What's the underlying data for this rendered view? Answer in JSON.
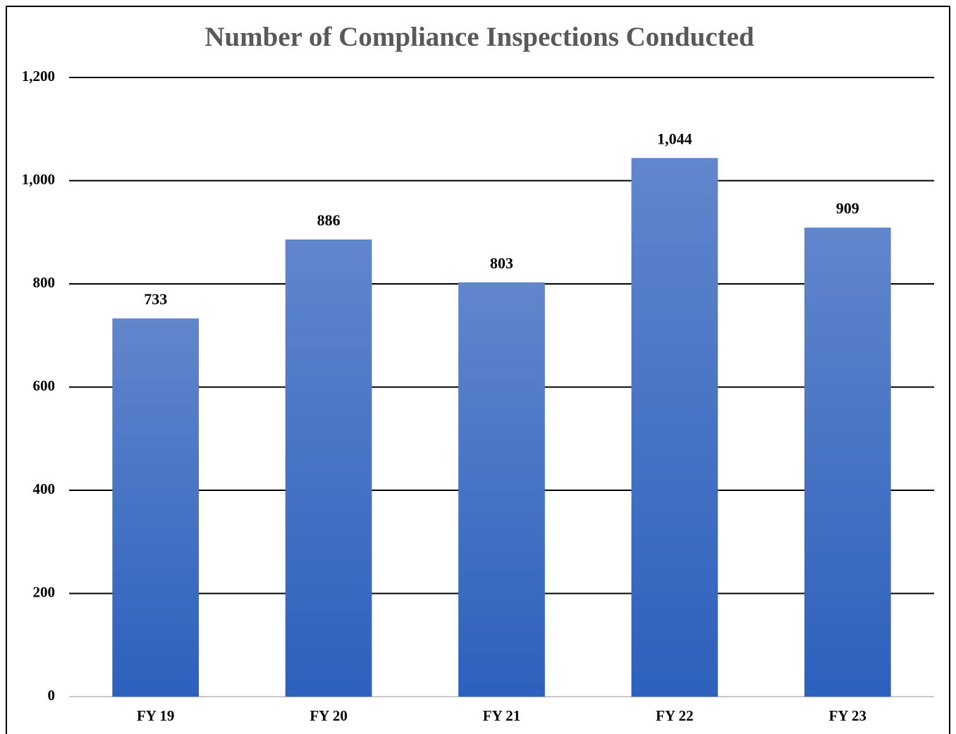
{
  "chart_data": {
    "type": "bar",
    "title": "Number of Compliance Inspections Conducted",
    "categories": [
      "FY 19",
      "FY 20",
      "FY 21",
      "FY 22",
      "FY 23"
    ],
    "values": [
      733,
      886,
      803,
      1044,
      909
    ],
    "value_labels": [
      "733",
      "886",
      "803",
      "1,044",
      "909"
    ],
    "color": "#3a6bc6",
    "ylim": [
      0,
      1200
    ],
    "yticks": [
      0,
      200,
      400,
      600,
      800,
      {
        "value": 1000,
        "label": "1,000"
      },
      {
        "value": 1200,
        "label": "1,200"
      }
    ],
    "grid": true
  }
}
